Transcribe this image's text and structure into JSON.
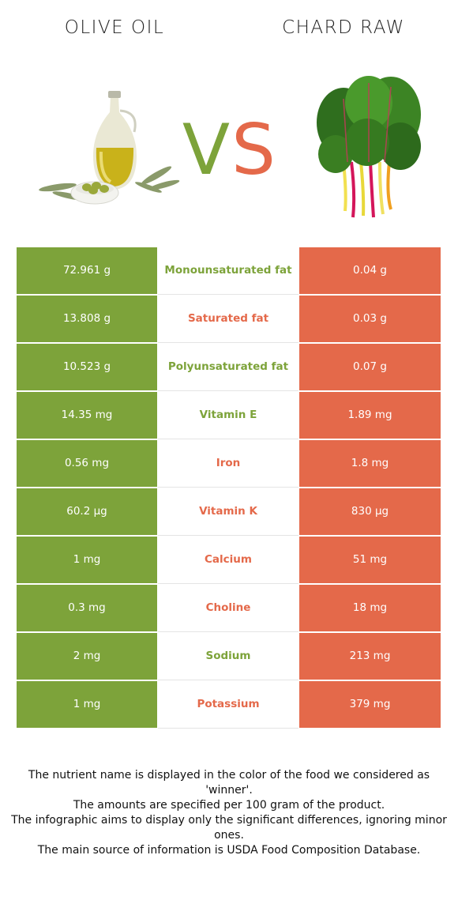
{
  "header": {
    "left_title": "OLIVE OIL",
    "right_title": "CHARD RAW",
    "vs_letters": [
      "V",
      "S"
    ]
  },
  "colors": {
    "winner_left": "#7da33a",
    "winner_right": "#e4694a"
  },
  "images": {
    "left": "olive-oil-bottle-with-olives-and-leaves",
    "right": "swiss-chard-bunch"
  },
  "rows": [
    {
      "left": "72.961 g",
      "nutrient": "Monounsaturated fat",
      "right": "0.04 g",
      "winner": "left"
    },
    {
      "left": "13.808 g",
      "nutrient": "Saturated fat",
      "right": "0.03 g",
      "winner": "right"
    },
    {
      "left": "10.523 g",
      "nutrient": "Polyunsaturated fat",
      "right": "0.07 g",
      "winner": "left"
    },
    {
      "left": "14.35 mg",
      "nutrient": "Vitamin E",
      "right": "1.89 mg",
      "winner": "left"
    },
    {
      "left": "0.56 mg",
      "nutrient": "Iron",
      "right": "1.8 mg",
      "winner": "right"
    },
    {
      "left": "60.2 µg",
      "nutrient": "Vitamin K",
      "right": "830 µg",
      "winner": "right"
    },
    {
      "left": "1 mg",
      "nutrient": "Calcium",
      "right": "51 mg",
      "winner": "right"
    },
    {
      "left": "0.3 mg",
      "nutrient": "Choline",
      "right": "18 mg",
      "winner": "right"
    },
    {
      "left": "2 mg",
      "nutrient": "Sodium",
      "right": "213 mg",
      "winner": "left"
    },
    {
      "left": "1 mg",
      "nutrient": "Potassium",
      "right": "379 mg",
      "winner": "right"
    }
  ],
  "footer": {
    "line1": "The nutrient name is displayed in the color of the food we considered as 'winner'.",
    "line2": "The amounts are specified per 100 gram of the product.",
    "line3": "The infographic aims to display only the significant differences, ignoring minor ones.",
    "line4": "The main source of information is USDA Food Composition Database."
  }
}
